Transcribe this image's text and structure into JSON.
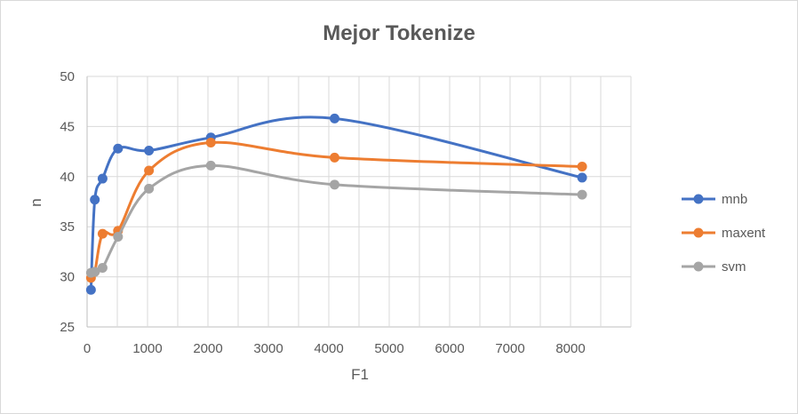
{
  "chart_data": {
    "type": "line",
    "title": "Mejor Tokenize",
    "xlabel": "F1",
    "ylabel": "n",
    "xlim": [
      0,
      9000
    ],
    "ylim": [
      25,
      50
    ],
    "xticks": [
      0,
      1000,
      2000,
      3000,
      4000,
      5000,
      6000,
      7000,
      8000
    ],
    "yticks": [
      25,
      30,
      35,
      40,
      45,
      50
    ],
    "grid": true,
    "legend_position": "right",
    "series": [
      {
        "name": "mnb",
        "color": "#4472c4",
        "x": [
          64,
          128,
          256,
          512,
          1024,
          2048,
          4096,
          8192
        ],
        "y": [
          28.7,
          37.7,
          39.8,
          42.8,
          42.6,
          43.9,
          45.8,
          39.9
        ]
      },
      {
        "name": "maxent",
        "color": "#ed7d31",
        "x": [
          64,
          128,
          256,
          512,
          1024,
          2048,
          4096,
          8192
        ],
        "y": [
          29.9,
          30.5,
          34.3,
          34.6,
          40.6,
          43.4,
          41.9,
          41.0
        ]
      },
      {
        "name": "svm",
        "color": "#a5a5a5",
        "x": [
          64,
          128,
          256,
          512,
          1024,
          2048,
          4096,
          8192
        ],
        "y": [
          30.4,
          30.5,
          30.9,
          34.0,
          38.8,
          41.1,
          39.2,
          38.2
        ]
      }
    ]
  }
}
